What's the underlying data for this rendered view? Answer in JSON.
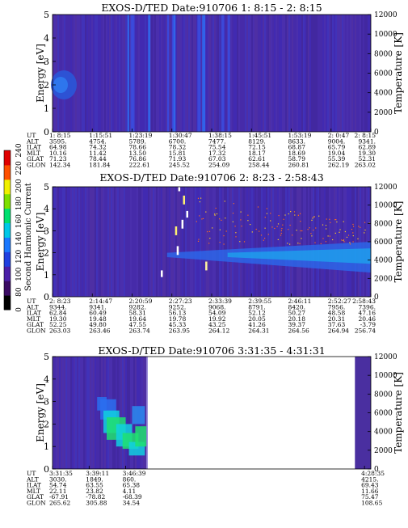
{
  "colorbar": {
    "label": "Second Harmonic Current",
    "ticks": [
      "0",
      "80",
      "100",
      "120",
      "140",
      "160",
      "180",
      "200",
      "220",
      "240"
    ],
    "colors": [
      "#000000",
      "#3a0a63",
      "#4b1fa8",
      "#2040e0",
      "#1a78ff",
      "#00c8e8",
      "#00e070",
      "#7ee000",
      "#f0f000",
      "#ff5000",
      "#e00000"
    ]
  },
  "panels": [
    {
      "title": "EXOS-D/TED   Date:910706  1: 8:15 - 2: 8:15",
      "ylabel": "Energy [eV]",
      "y2label": "Temperature [K]",
      "yticks": [
        "0",
        "1",
        "2",
        "3",
        "4",
        "5"
      ],
      "y2ticks": [
        "0",
        "2000",
        "4000",
        "6000",
        "8000",
        "10000",
        "12000"
      ],
      "row_labels": [
        "UT",
        "ALT",
        "ILAT",
        "MLT",
        "GLAT",
        "GLON"
      ],
      "columns": [
        [
          "1: 8:15",
          "3595.",
          "64.98",
          "10.16",
          "71.23",
          "142.34"
        ],
        [
          "1:15:51",
          "4754.",
          "74.32",
          "11.42",
          "78.44",
          "181.84"
        ],
        [
          "1:23:19",
          "5789.",
          "78.66",
          "13.50",
          "76.86",
          "222.61"
        ],
        [
          "1:30:47",
          "6700.",
          "78.32",
          "15.81",
          "71.93",
          "245.52"
        ],
        [
          "1:38:15",
          "7477.",
          "75.54",
          "17.32",
          "67.03",
          "254.09"
        ],
        [
          "1:45:51",
          "8129.",
          "72.15",
          "18.17",
          "62.61",
          "258.44"
        ],
        [
          "1:53:19",
          "8633.",
          "68.87",
          "18.69",
          "58.79",
          "260.81"
        ],
        [
          "2: 0:47",
          "9004.",
          "65.79",
          "19.04",
          "55.39",
          "262.19"
        ],
        [
          "2: 8:15",
          "9341.",
          "62.89",
          "19.30",
          "52.31",
          "263.02"
        ]
      ],
      "data_extent": [
        0,
        1
      ],
      "features": "blue background, bright vertical streaks 1:23-1:39, green patch near 2 eV at start"
    },
    {
      "title": "EXOS-D/TED   Date:910706  2: 8:23 - 2:58:43",
      "ylabel": "Energy [eV]",
      "y2label": "Temperature [K]",
      "yticks": [
        "0",
        "1",
        "2",
        "3",
        "4",
        "5"
      ],
      "y2ticks": [
        "0",
        "2000",
        "4000",
        "6000",
        "8000",
        "10000",
        "12000"
      ],
      "row_labels": [
        "UT",
        "ALT",
        "ILAT",
        "MLT",
        "GLAT",
        "GLON"
      ],
      "columns": [
        [
          "2: 8:23",
          "9344.",
          "62.84",
          "19.30",
          "52.25",
          "263.03"
        ],
        [
          "2:14:47",
          "9341.",
          "60.49",
          "19.48",
          "49.80",
          "263.46"
        ],
        [
          "2:20:59",
          "9282.",
          "58.31",
          "19.64",
          "47.55",
          "263.74"
        ],
        [
          "2:27:23",
          "9252.",
          "56.13",
          "19.78",
          "45.33",
          "263.95"
        ],
        [
          "2:33:39",
          "9068.",
          "54.09",
          "19.92",
          "43.25",
          "264.12"
        ],
        [
          "2:39:55",
          "8791.",
          "52.12",
          "20.05",
          "41.26",
          "264.31"
        ],
        [
          "2:46:11",
          "8420.",
          "50.27",
          "20.18",
          "39.37",
          "264.56"
        ],
        [
          "2:52:27",
          "7956.",
          "48.58",
          "20.31",
          "37.63",
          "264.94"
        ],
        [
          "2:58:43",
          "7396.",
          "47.16",
          "20.46",
          "-3.79",
          "256.74"
        ]
      ],
      "data_extent": [
        0,
        1
      ],
      "features": "light-blue band 1.5-2.5 eV from 2:30 onward, white/yellow spikes near 2:27"
    },
    {
      "title": "EXOS-D/TED   Date:910706  3:31:35 - 4:31:31",
      "ylabel": "Energy [eV]",
      "y2label": "Temperature [K]",
      "yticks": [
        "0",
        "1",
        "2",
        "3",
        "4",
        "5"
      ],
      "y2ticks": [
        "0",
        "2000",
        "4000",
        "6000",
        "8000",
        "10000",
        "12000"
      ],
      "row_labels": [
        "UT",
        "ALT",
        "ILAT",
        "MLT",
        "GLAT",
        "GLON"
      ],
      "columns": [
        [
          "3:31:35",
          "3030.",
          "54.74",
          "22.11",
          "-67.91",
          "265.62"
        ],
        [
          "3:39:11",
          "1849.",
          "63.55",
          "23.82",
          "-78.82",
          "305.88"
        ],
        [
          "3:46:39",
          "860.",
          "65.38",
          "4.11",
          "-68.39",
          "34.54"
        ],
        [
          "4:28:35",
          "4215.",
          "69.43",
          "11.66",
          "75.47",
          "108.65"
        ]
      ],
      "data_extent": [
        0,
        0.295
      ],
      "late_extent": [
        0.95,
        1
      ],
      "features": "data until 3:47 then gap, green/cyan burst 1-3 eV at 3:36-3:46"
    }
  ]
}
